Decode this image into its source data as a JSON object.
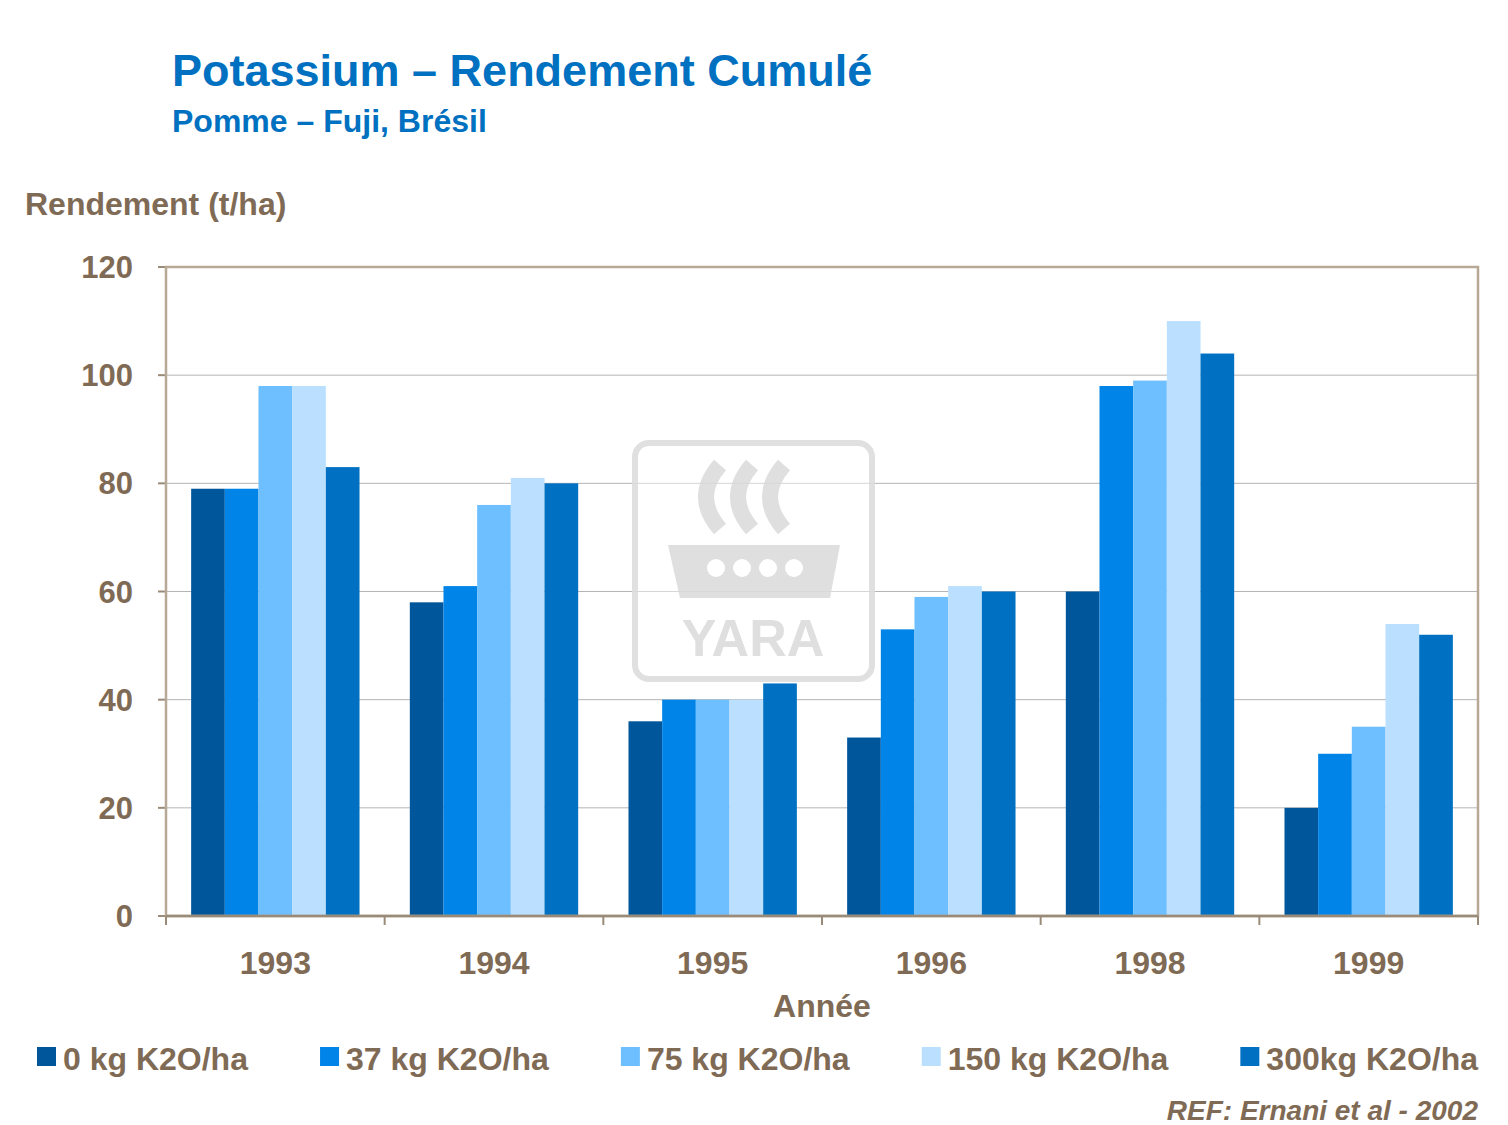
{
  "chart_data": {
    "type": "bar",
    "title": "Potassium – Rendement Cumulé",
    "subtitle": "Pomme – Fuji, Brésil",
    "y_label": "Rendement (t/ha)",
    "x_label": "Année",
    "source": "REF: Ernani et al - 2002",
    "watermark": "YARA",
    "categories": [
      "1993",
      "1994",
      "1995",
      "1996",
      "1998",
      "1999"
    ],
    "series": [
      {
        "name": "0 kg K2O/ha",
        "color": "#00569b",
        "values": [
          79,
          58,
          36,
          33,
          60,
          20
        ]
      },
      {
        "name": "37 kg K2O/ha",
        "color": "#0084e8",
        "values": [
          79,
          61,
          40,
          53,
          98,
          30
        ]
      },
      {
        "name": "75 kg K2O/ha",
        "color": "#6dbfff",
        "values": [
          98,
          76,
          40,
          59,
          99,
          35
        ]
      },
      {
        "name": "150 kg K2O/ha",
        "color": "#badfff",
        "values": [
          98,
          81,
          40,
          61,
          110,
          54
        ]
      },
      {
        "name": "300kg K2O/ha",
        "color": "#0071c2",
        "values": [
          83,
          80,
          43,
          60,
          104,
          52
        ]
      }
    ],
    "ylim": [
      0,
      120
    ],
    "yticks": [
      0,
      20,
      40,
      60,
      80,
      100,
      120
    ],
    "grid": true,
    "legend": "bottom"
  }
}
